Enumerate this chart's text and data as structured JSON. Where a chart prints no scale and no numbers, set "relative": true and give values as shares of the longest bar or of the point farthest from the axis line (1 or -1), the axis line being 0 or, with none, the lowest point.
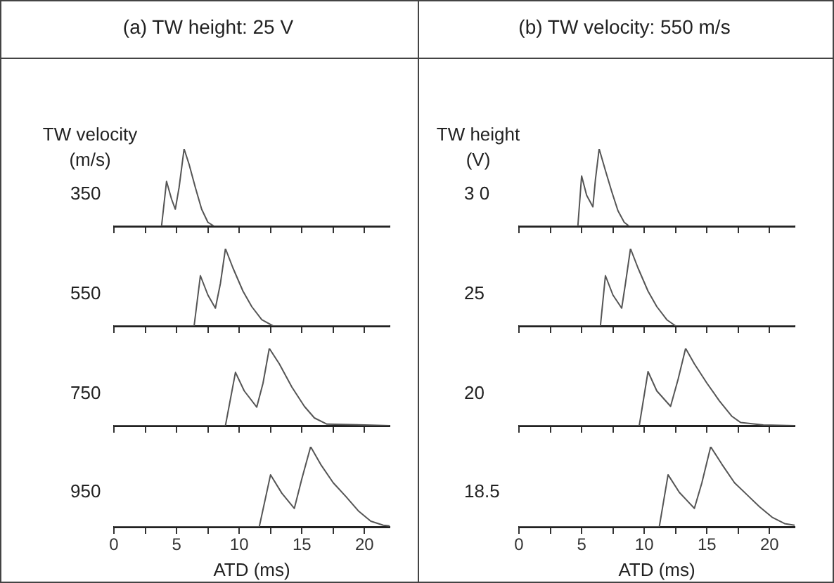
{
  "chart_data": [
    {
      "type": "line",
      "title": "(a) TW height: 25 V",
      "subtitle": "TW velocity (m/s)",
      "ylabel": "350",
      "relative": true,
      "tick_labels": false,
      "xlim": [
        0,
        22
      ],
      "xticks": [
        0,
        {
          "value": 2.5,
          "label": null
        },
        5,
        {
          "value": 7.5,
          "label": null
        },
        10,
        {
          "value": 12.5,
          "label": null
        },
        15,
        {
          "value": 17.5,
          "label": null
        },
        20
      ],
      "x": [
        0,
        3.8,
        4.2,
        4.6,
        4.9,
        5.2,
        5.6,
        6.0,
        6.5,
        7.0,
        7.5,
        8.0,
        22
      ],
      "series": [
        {
          "color": "#555555",
          "values": [
            0,
            0,
            0.58,
            0.35,
            0.22,
            0.5,
            1,
            0.8,
            0.5,
            0.22,
            0.05,
            0,
            0
          ]
        }
      ]
    },
    {
      "type": "line",
      "ylabel": "550",
      "relative": true,
      "tick_labels": false,
      "xlim": [
        0,
        22
      ],
      "xticks": [
        0,
        {
          "value": 2.5,
          "label": null
        },
        5,
        {
          "value": 7.5,
          "label": null
        },
        10,
        {
          "value": 12.5,
          "label": null
        },
        15,
        {
          "value": 17.5,
          "label": null
        },
        20
      ],
      "x": [
        0,
        6.4,
        6.9,
        7.5,
        8.1,
        8.5,
        8.9,
        9.5,
        10.3,
        11.0,
        11.8,
        12.7,
        22
      ],
      "series": [
        {
          "color": "#555555",
          "values": [
            0,
            0,
            0.65,
            0.4,
            0.23,
            0.55,
            1,
            0.75,
            0.45,
            0.25,
            0.08,
            0,
            0
          ]
        }
      ]
    },
    {
      "type": "line",
      "ylabel": "750",
      "relative": true,
      "tick_labels": false,
      "xlim": [
        0,
        22
      ],
      "xticks": [
        0,
        {
          "value": 2.5,
          "label": null
        },
        5,
        {
          "value": 7.5,
          "label": null
        },
        10,
        {
          "value": 12.5,
          "label": null
        },
        15,
        {
          "value": 17.5,
          "label": null
        },
        20
      ],
      "x": [
        0,
        8.9,
        9.7,
        10.4,
        11.4,
        11.9,
        12.4,
        13.2,
        14.2,
        15.2,
        16.0,
        17.0,
        20.0,
        22
      ],
      "series": [
        {
          "color": "#555555",
          "values": [
            0,
            0,
            0.69,
            0.45,
            0.24,
            0.55,
            1,
            0.8,
            0.5,
            0.25,
            0.1,
            0.02,
            0.01,
            0
          ]
        }
      ]
    },
    {
      "type": "line",
      "ylabel": "950",
      "xlabel": "ATD (ms)",
      "relative": true,
      "tick_labels": "x",
      "xlim": [
        0,
        22
      ],
      "xticks": [
        0,
        {
          "value": 2.5,
          "label": null
        },
        5,
        {
          "value": 7.5,
          "label": null
        },
        10,
        {
          "value": 12.5,
          "label": null
        },
        15,
        {
          "value": 17.5,
          "label": null
        },
        20
      ],
      "x": [
        0,
        11.6,
        12.5,
        13.4,
        14.4,
        15.0,
        15.7,
        16.5,
        17.5,
        18.5,
        19.5,
        20.5,
        21.5,
        22
      ],
      "series": [
        {
          "color": "#555555",
          "values": [
            0,
            0,
            0.65,
            0.42,
            0.23,
            0.6,
            1,
            0.78,
            0.55,
            0.38,
            0.2,
            0.07,
            0.02,
            0.01
          ]
        }
      ]
    },
    {
      "type": "line",
      "title": "(b) TW velocity: 550 m/s",
      "subtitle": "TW height (V)",
      "ylabel": "3 0",
      "relative": true,
      "tick_labels": false,
      "xlim": [
        0,
        22
      ],
      "xticks": [
        0,
        {
          "value": 2.5,
          "label": null
        },
        5,
        {
          "value": 7.5,
          "label": null
        },
        10,
        {
          "value": 12.5,
          "label": null
        },
        15,
        {
          "value": 17.5,
          "label": null
        },
        20
      ],
      "x": [
        0,
        4.7,
        5.0,
        5.4,
        5.9,
        6.1,
        6.4,
        6.9,
        7.4,
        7.9,
        8.4,
        8.8,
        22
      ],
      "series": [
        {
          "color": "#555555",
          "values": [
            0,
            0,
            0.65,
            0.4,
            0.25,
            0.6,
            1,
            0.72,
            0.45,
            0.2,
            0.05,
            0,
            0
          ]
        }
      ]
    },
    {
      "type": "line",
      "ylabel": "25",
      "relative": true,
      "tick_labels": false,
      "xlim": [
        0,
        22
      ],
      "xticks": [
        0,
        {
          "value": 2.5,
          "label": null
        },
        5,
        {
          "value": 7.5,
          "label": null
        },
        10,
        {
          "value": 12.5,
          "label": null
        },
        15,
        {
          "value": 17.5,
          "label": null
        },
        20
      ],
      "x": [
        0,
        6.5,
        6.9,
        7.5,
        8.2,
        8.5,
        8.9,
        9.5,
        10.3,
        11.0,
        11.8,
        12.5,
        22
      ],
      "series": [
        {
          "color": "#555555",
          "values": [
            0,
            0,
            0.65,
            0.4,
            0.23,
            0.55,
            1,
            0.75,
            0.45,
            0.25,
            0.08,
            0,
            0
          ]
        }
      ]
    },
    {
      "type": "line",
      "ylabel": "20",
      "relative": true,
      "tick_labels": false,
      "xlim": [
        0,
        22
      ],
      "xticks": [
        0,
        {
          "value": 2.5,
          "label": null
        },
        5,
        {
          "value": 7.5,
          "label": null
        },
        10,
        {
          "value": 12.5,
          "label": null
        },
        15,
        {
          "value": 17.5,
          "label": null
        },
        20
      ],
      "x": [
        0,
        9.6,
        10.3,
        11.0,
        12.1,
        12.7,
        13.3,
        14.0,
        15.0,
        16.0,
        17.0,
        17.7,
        19.5,
        22
      ],
      "series": [
        {
          "color": "#555555",
          "values": [
            0,
            0,
            0.7,
            0.45,
            0.25,
            0.6,
            1,
            0.8,
            0.55,
            0.32,
            0.12,
            0.04,
            0.01,
            0
          ]
        }
      ]
    },
    {
      "type": "line",
      "ylabel": "18.5",
      "xlabel": "ATD (ms)",
      "relative": true,
      "tick_labels": "x",
      "xlim": [
        0,
        22
      ],
      "xticks": [
        0,
        {
          "value": 2.5,
          "label": null
        },
        5,
        {
          "value": 7.5,
          "label": null
        },
        10,
        {
          "value": 12.5,
          "label": null
        },
        15,
        {
          "value": 17.5,
          "label": null
        },
        20
      ],
      "x": [
        0,
        11.2,
        11.9,
        12.8,
        13.4,
        14.0,
        14.6,
        15.3,
        16.2,
        17.2,
        18.2,
        19.2,
        20.2,
        21.2,
        22
      ],
      "series": [
        {
          "color": "#555555",
          "values": [
            0,
            0,
            0.65,
            0.43,
            0.33,
            0.23,
            0.55,
            1,
            0.78,
            0.55,
            0.4,
            0.25,
            0.12,
            0.04,
            0.02
          ]
        }
      ]
    }
  ]
}
